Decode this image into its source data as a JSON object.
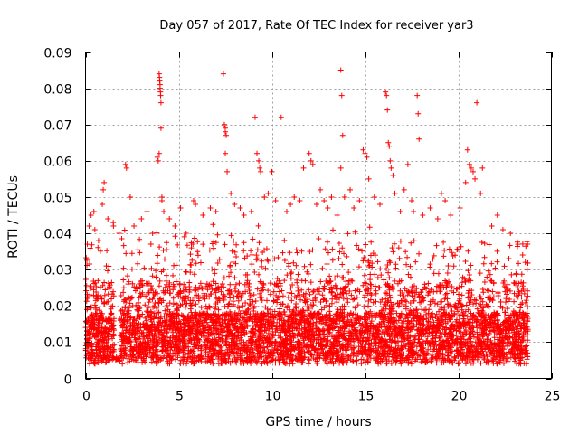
{
  "chart_data": {
    "type": "scatter",
    "title": "Day 057 of 2017, Rate Of TEC Index for receiver yar3",
    "xlabel": "GPS time / hours",
    "ylabel": "ROTI / TECUs",
    "xlim": [
      0,
      25
    ],
    "ylim": [
      0,
      0.09
    ],
    "x_ticks": [
      0,
      5,
      10,
      15,
      20,
      25
    ],
    "x_tick_labels": [
      "0",
      "5",
      "10",
      "15",
      "20",
      "25"
    ],
    "y_ticks": [
      0,
      0.01,
      0.02,
      0.03,
      0.04,
      0.05,
      0.06,
      0.07,
      0.08,
      0.09
    ],
    "y_tick_labels": [
      "0",
      "0.01",
      "0.02",
      "0.03",
      "0.04",
      "0.05",
      "0.06",
      "0.07",
      "0.08",
      "0.09"
    ],
    "grid": true,
    "marker": "+",
    "color": "#ff0000",
    "series": [
      {
        "name": "ROTI",
        "points": [
          [
            0.1,
            0.037
          ],
          [
            0.2,
            0.042
          ],
          [
            0.3,
            0.045
          ],
          [
            0.45,
            0.046
          ],
          [
            0.5,
            0.041
          ],
          [
            0.7,
            0.038
          ],
          [
            0.9,
            0.048
          ],
          [
            0.95,
            0.052
          ],
          [
            1.0,
            0.054
          ],
          [
            1.2,
            0.044
          ],
          [
            1.5,
            0.042
          ],
          [
            1.8,
            0.04
          ],
          [
            2.15,
            0.059
          ],
          [
            2.2,
            0.058
          ],
          [
            2.4,
            0.05
          ],
          [
            2.6,
            0.042
          ],
          [
            3.0,
            0.044
          ],
          [
            3.3,
            0.046
          ],
          [
            3.6,
            0.04
          ],
          [
            3.85,
            0.061
          ],
          [
            3.9,
            0.06
          ],
          [
            3.95,
            0.062
          ],
          [
            3.95,
            0.084
          ],
          [
            3.97,
            0.083
          ],
          [
            3.98,
            0.082
          ],
          [
            4.0,
            0.081
          ],
          [
            4.0,
            0.08
          ],
          [
            4.02,
            0.079
          ],
          [
            4.03,
            0.078
          ],
          [
            4.05,
            0.076
          ],
          [
            4.05,
            0.069
          ],
          [
            4.1,
            0.05
          ],
          [
            4.1,
            0.049
          ],
          [
            4.2,
            0.046
          ],
          [
            4.5,
            0.044
          ],
          [
            4.8,
            0.042
          ],
          [
            5.1,
            0.047
          ],
          [
            5.4,
            0.04
          ],
          [
            5.8,
            0.049
          ],
          [
            5.9,
            0.048
          ],
          [
            6.3,
            0.045
          ],
          [
            6.7,
            0.047
          ],
          [
            7.0,
            0.046
          ],
          [
            7.4,
            0.084
          ],
          [
            7.45,
            0.07
          ],
          [
            7.5,
            0.069
          ],
          [
            7.5,
            0.068
          ],
          [
            7.55,
            0.067
          ],
          [
            7.5,
            0.062
          ],
          [
            7.6,
            0.057
          ],
          [
            7.8,
            0.051
          ],
          [
            8.0,
            0.048
          ],
          [
            8.3,
            0.047
          ],
          [
            8.5,
            0.045
          ],
          [
            8.9,
            0.046
          ],
          [
            9.1,
            0.072
          ],
          [
            9.2,
            0.062
          ],
          [
            9.3,
            0.06
          ],
          [
            9.35,
            0.058
          ],
          [
            9.4,
            0.057
          ],
          [
            9.6,
            0.05
          ],
          [
            9.8,
            0.051
          ],
          [
            10.0,
            0.057
          ],
          [
            10.2,
            0.049
          ],
          [
            10.5,
            0.072
          ],
          [
            10.8,
            0.046
          ],
          [
            11.0,
            0.048
          ],
          [
            11.2,
            0.05
          ],
          [
            11.5,
            0.049
          ],
          [
            11.7,
            0.058
          ],
          [
            12.0,
            0.062
          ],
          [
            12.1,
            0.06
          ],
          [
            12.2,
            0.059
          ],
          [
            12.4,
            0.048
          ],
          [
            12.6,
            0.052
          ],
          [
            12.8,
            0.049
          ],
          [
            13.0,
            0.047
          ],
          [
            13.2,
            0.05
          ],
          [
            13.5,
            0.045
          ],
          [
            13.7,
            0.085
          ],
          [
            13.75,
            0.078
          ],
          [
            13.8,
            0.067
          ],
          [
            13.7,
            0.058
          ],
          [
            13.9,
            0.05
          ],
          [
            14.2,
            0.052
          ],
          [
            14.4,
            0.047
          ],
          [
            14.7,
            0.049
          ],
          [
            14.9,
            0.063
          ],
          [
            15.0,
            0.062
          ],
          [
            15.1,
            0.061
          ],
          [
            15.2,
            0.055
          ],
          [
            15.5,
            0.05
          ],
          [
            15.8,
            0.048
          ],
          [
            16.1,
            0.079
          ],
          [
            16.15,
            0.078
          ],
          [
            16.2,
            0.074
          ],
          [
            16.25,
            0.065
          ],
          [
            16.3,
            0.064
          ],
          [
            16.35,
            0.06
          ],
          [
            16.4,
            0.058
          ],
          [
            16.5,
            0.056
          ],
          [
            16.6,
            0.051
          ],
          [
            16.9,
            0.046
          ],
          [
            17.1,
            0.052
          ],
          [
            17.3,
            0.059
          ],
          [
            17.5,
            0.049
          ],
          [
            17.6,
            0.046
          ],
          [
            17.8,
            0.078
          ],
          [
            17.85,
            0.073
          ],
          [
            17.9,
            0.066
          ],
          [
            18.1,
            0.045
          ],
          [
            18.5,
            0.047
          ],
          [
            18.9,
            0.044
          ],
          [
            19.1,
            0.051
          ],
          [
            19.3,
            0.049
          ],
          [
            19.6,
            0.045
          ],
          [
            20.1,
            0.047
          ],
          [
            20.4,
            0.054
          ],
          [
            20.5,
            0.063
          ],
          [
            20.6,
            0.059
          ],
          [
            20.7,
            0.058
          ],
          [
            20.8,
            0.057
          ],
          [
            20.9,
            0.055
          ],
          [
            21.0,
            0.076
          ],
          [
            21.2,
            0.051
          ],
          [
            21.3,
            0.058
          ],
          [
            21.8,
            0.042
          ],
          [
            22.1,
            0.045
          ],
          [
            22.4,
            0.041
          ],
          [
            22.8,
            0.04
          ],
          [
            23.2,
            0.037
          ],
          [
            23.6,
            0.032
          ],
          [
            23.7,
            0.03
          ]
        ]
      }
    ]
  }
}
